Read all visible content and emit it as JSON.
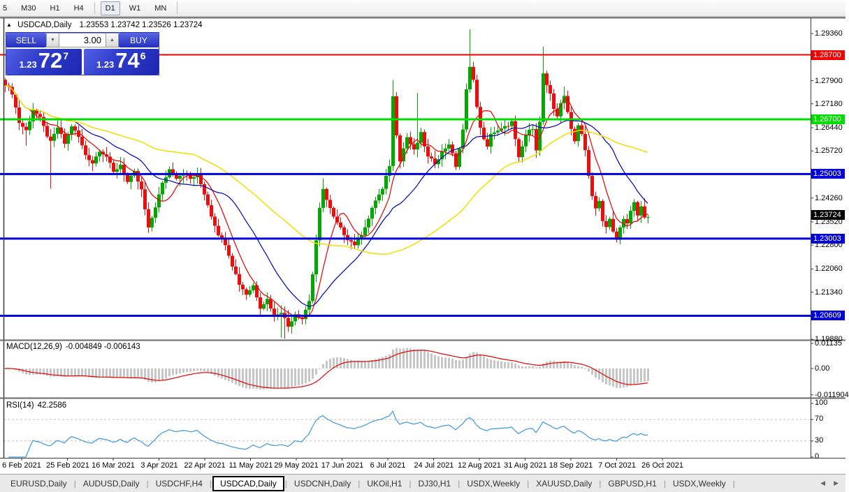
{
  "toolbar": {
    "items": [
      {
        "label": "5",
        "active": false
      },
      {
        "label": "M30",
        "active": false
      },
      {
        "label": "H1",
        "active": false
      },
      {
        "label": "H4",
        "active": false
      },
      {
        "separator": true
      },
      {
        "label": "D1",
        "active": true
      },
      {
        "label": "W1",
        "active": false
      },
      {
        "label": "MN",
        "active": false
      },
      {
        "separator": true
      }
    ]
  },
  "chart": {
    "collapse_arrow": "▲",
    "symbol_title": "USDCAD,Daily",
    "ohlc_text": "1.23553 1.23742 1.23526 1.23724"
  },
  "quote_panel": {
    "sell_label": "SELL",
    "buy_label": "BUY",
    "volume": "3.00",
    "decrease_icon": "▼",
    "increase_icon": "▲",
    "sell_price": {
      "small": "1.23",
      "big": "72",
      "sup": "7"
    },
    "buy_price": {
      "small": "1.23",
      "big": "74",
      "sup": "6"
    }
  },
  "price_axis": {
    "ticks": [
      {
        "label": "1.29360",
        "p": 1.2936
      },
      {
        "label": "1.27900",
        "p": 1.279
      },
      {
        "label": "1.27180",
        "p": 1.2718
      },
      {
        "label": "1.26440",
        "p": 1.2644
      },
      {
        "label": "1.25720",
        "p": 1.2572
      },
      {
        "label": "1.24260",
        "p": 1.2426
      },
      {
        "label": "1.23520",
        "p": 1.2352
      },
      {
        "label": "1.22800",
        "p": 1.228
      },
      {
        "label": "1.22060",
        "p": 1.2206
      },
      {
        "label": "1.21340",
        "p": 1.2134
      },
      {
        "label": "1.19880",
        "p": 1.1988
      }
    ]
  },
  "hlines": [
    {
      "label": "1.28700",
      "price": 1.287,
      "color": "#f00000",
      "thickness": 2
    },
    {
      "label": "1.26700",
      "price": 1.267,
      "color": "#00dd00",
      "thickness": 3
    },
    {
      "label": "1.25003",
      "price": 1.25003,
      "color": "#0000dc",
      "thickness": 3
    },
    {
      "label": "1.23003",
      "price": 1.23003,
      "color": "#0000dc",
      "thickness": 3
    },
    {
      "label": "1.20609",
      "price": 1.20609,
      "color": "#0000dc",
      "thickness": 3
    }
  ],
  "current_price_marker": {
    "label": "1.23724",
    "price": 1.23724,
    "bg": "#000000"
  },
  "date_axis": {
    "labels": [
      "6 Feb 2021",
      "25 Feb 2021",
      "16 Mar 2021",
      "3 Apr 2021",
      "22 Apr 2021",
      "11 May 2021",
      "29 May 2021",
      "17 Jun 2021",
      "6 Jul 2021",
      "24 Jul 2021",
      "12 Aug 2021",
      "31 Aug 2021",
      "18 Sep 2021",
      "7 Oct 2021",
      "26 Oct 2021"
    ]
  },
  "macd": {
    "name": "MACD(12,26,9)",
    "values": "-0.004849 -0.006143",
    "axis_labels": [
      {
        "label": "0.01135",
        "v": 0.01135
      },
      {
        "label": "0.00",
        "v": 0
      },
      {
        "label": "-0.011904",
        "v": -0.011904
      }
    ],
    "hist_color": "#c6c6c6",
    "signal_color": "#e60000",
    "fast": 12,
    "slow": 26,
    "signal": 9
  },
  "rsi": {
    "name": "RSI(14)",
    "value": "42.2586",
    "period": 14,
    "axis_labels": [
      {
        "label": "100",
        "v": 100
      },
      {
        "label": "70",
        "v": 70
      },
      {
        "label": "30",
        "v": 30
      },
      {
        "label": "0",
        "v": 0
      }
    ],
    "levels": [
      70,
      30
    ],
    "line_color": "#3e96dc",
    "level_color": "#bdbdbd"
  },
  "tab_bar": {
    "tabs": [
      "EURUSD,Daily",
      "AUDUSD,Daily",
      "USDCHF,H4",
      "USDCAD,Daily",
      "USDCNH,Daily",
      "UKOil,H1",
      "DJ30,H1",
      "USDX,Weekly",
      "XAUUSD,Daily",
      "GBPUSD,H1",
      "USDX,Weekly"
    ],
    "active_index": 3,
    "left_arrow": "◀",
    "right_arrow": "▶"
  },
  "colors": {
    "bull": "#00a800",
    "bear": "#ee0c0c",
    "border": "#3a3a3a"
  },
  "chart_data": {
    "type": "candlestick",
    "symbol": "USDCAD",
    "timeframe": "Daily",
    "candle_count": 185,
    "visible_price_range": {
      "min": 1.1988,
      "max": 1.2955
    },
    "close_anchors": [
      [
        0,
        1.278
      ],
      [
        2,
        1.2752
      ],
      [
        4,
        1.266
      ],
      [
        6,
        1.2635
      ],
      [
        8,
        1.27
      ],
      [
        10,
        1.2672
      ],
      [
        12,
        1.262
      ],
      [
        13,
        1.2598
      ],
      [
        15,
        1.2645
      ],
      [
        17,
        1.2595
      ],
      [
        19,
        1.265
      ],
      [
        21,
        1.2615
      ],
      [
        23,
        1.256
      ],
      [
        25,
        1.2535
      ],
      [
        27,
        1.2575
      ],
      [
        29,
        1.2555
      ],
      [
        31,
        1.2505
      ],
      [
        33,
        1.253
      ],
      [
        35,
        1.2475
      ],
      [
        37,
        1.2505
      ],
      [
        39,
        1.245
      ],
      [
        41,
        1.233
      ],
      [
        43,
        1.24
      ],
      [
        45,
        1.247
      ],
      [
        47,
        1.2515
      ],
      [
        49,
        1.249
      ],
      [
        51,
        1.2505
      ],
      [
        53,
        1.2485
      ],
      [
        55,
        1.2498
      ],
      [
        57,
        1.244
      ],
      [
        59,
        1.2372
      ],
      [
        61,
        1.2315
      ],
      [
        63,
        1.2285
      ],
      [
        65,
        1.2218
      ],
      [
        67,
        1.216
      ],
      [
        69,
        1.2128
      ],
      [
        71,
        1.2155
      ],
      [
        73,
        1.2088
      ],
      [
        75,
        1.2112
      ],
      [
        77,
        1.2062
      ],
      [
        79,
        1.2075
      ],
      [
        81,
        1.2028
      ],
      [
        83,
        1.2068
      ],
      [
        85,
        1.2052
      ],
      [
        87,
        1.2108
      ],
      [
        88,
        1.219
      ],
      [
        89,
        1.229
      ],
      [
        90,
        1.2392
      ],
      [
        91,
        1.2458
      ],
      [
        92,
        1.242
      ],
      [
        94,
        1.2365
      ],
      [
        96,
        1.233
      ],
      [
        98,
        1.23
      ],
      [
        100,
        1.2282
      ],
      [
        102,
        1.2315
      ],
      [
        104,
        1.2362
      ],
      [
        106,
        1.242
      ],
      [
        108,
        1.2452
      ],
      [
        110,
        1.2528
      ],
      [
        111,
        1.274
      ],
      [
        112,
        1.2625
      ],
      [
        113,
        1.2545
      ],
      [
        115,
        1.2615
      ],
      [
        117,
        1.2572
      ],
      [
        119,
        1.2625
      ],
      [
        121,
        1.2552
      ],
      [
        123,
        1.2535
      ],
      [
        125,
        1.2568
      ],
      [
        127,
        1.2595
      ],
      [
        129,
        1.2525
      ],
      [
        131,
        1.2635
      ],
      [
        132,
        1.276
      ],
      [
        133,
        1.2838
      ],
      [
        134,
        1.2792
      ],
      [
        135,
        1.2705
      ],
      [
        136,
        1.2648
      ],
      [
        137,
        1.2605
      ],
      [
        138,
        1.2582
      ],
      [
        139,
        1.2628
      ],
      [
        141,
        1.2632
      ],
      [
        143,
        1.2645
      ],
      [
        145,
        1.2662
      ],
      [
        147,
        1.2548
      ],
      [
        149,
        1.2622
      ],
      [
        151,
        1.2645
      ],
      [
        152,
        1.2578
      ],
      [
        153,
        1.266
      ],
      [
        154,
        1.2812
      ],
      [
        155,
        1.2772
      ],
      [
        156,
        1.2745
      ],
      [
        157,
        1.2702
      ],
      [
        158,
        1.2682
      ],
      [
        159,
        1.2722
      ],
      [
        160,
        1.2738
      ],
      [
        161,
        1.2692
      ],
      [
        162,
        1.2645
      ],
      [
        163,
        1.2602
      ],
      [
        164,
        1.2655
      ],
      [
        165,
        1.2625
      ],
      [
        166,
        1.2572
      ],
      [
        167,
        1.2492
      ],
      [
        168,
        1.2432
      ],
      [
        169,
        1.2392
      ],
      [
        170,
        1.2422
      ],
      [
        171,
        1.2352
      ],
      [
        172,
        1.2332
      ],
      [
        173,
        1.2358
      ],
      [
        174,
        1.2322
      ],
      [
        175,
        1.2295
      ],
      [
        176,
        1.2338
      ],
      [
        177,
        1.2362
      ],
      [
        178,
        1.2342
      ],
      [
        179,
        1.2388
      ],
      [
        180,
        1.2408
      ],
      [
        181,
        1.2372
      ],
      [
        182,
        1.2398
      ],
      [
        183,
        1.2362
      ],
      [
        184,
        1.2372
      ]
    ],
    "wick_high_overrides": {
      "0": 1.2798,
      "91": 1.2487,
      "111": 1.2792,
      "118": 1.2752,
      "133": 1.2949,
      "154": 1.2895,
      "160": 1.2772
    },
    "wick_low_overrides": {
      "6": 1.2588,
      "13": 1.2455,
      "41": 1.2318,
      "79": 1.1993,
      "80": 1.199,
      "100": 1.2268,
      "175": 1.2288
    },
    "moving_averages": [
      {
        "period": 8,
        "color": "#e60000",
        "width": 1.2
      },
      {
        "period": 21,
        "color": "#0000bb",
        "width": 1.2
      },
      {
        "period": 55,
        "color": "#f0e000",
        "width": 1.5
      }
    ]
  }
}
